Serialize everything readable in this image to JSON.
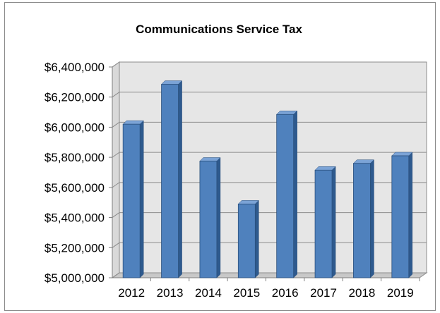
{
  "chart_data": {
    "type": "bar",
    "title": "Communications Service Tax",
    "xlabel": "",
    "ylabel": "",
    "categories": [
      "2012",
      "2013",
      "2014",
      "2015",
      "2016",
      "2017",
      "2018",
      "2019"
    ],
    "values": [
      6020000,
      6285000,
      5775000,
      5490000,
      6085000,
      5715000,
      5760000,
      5810000
    ],
    "ylim": [
      5000000,
      6400000
    ],
    "yticks": [
      5000000,
      5200000,
      5400000,
      5600000,
      5800000,
      6000000,
      6200000,
      6400000
    ],
    "ytick_labels": [
      "$5,000,000",
      "$5,200,000",
      "$5,400,000",
      "$5,600,000",
      "$5,800,000",
      "$6,000,000",
      "$6,200,000",
      "$6,400,000"
    ],
    "grid": true,
    "legend": "none",
    "colors": {
      "bar_front": "#4f81bd",
      "bar_side": "#2e5a8e",
      "bar_top": "#7ba3d6",
      "bar_edge": "#2a4f7c",
      "grid": "#8c8c8c",
      "wall": "#e6e6e6",
      "floor": "#c8c8c8"
    }
  }
}
